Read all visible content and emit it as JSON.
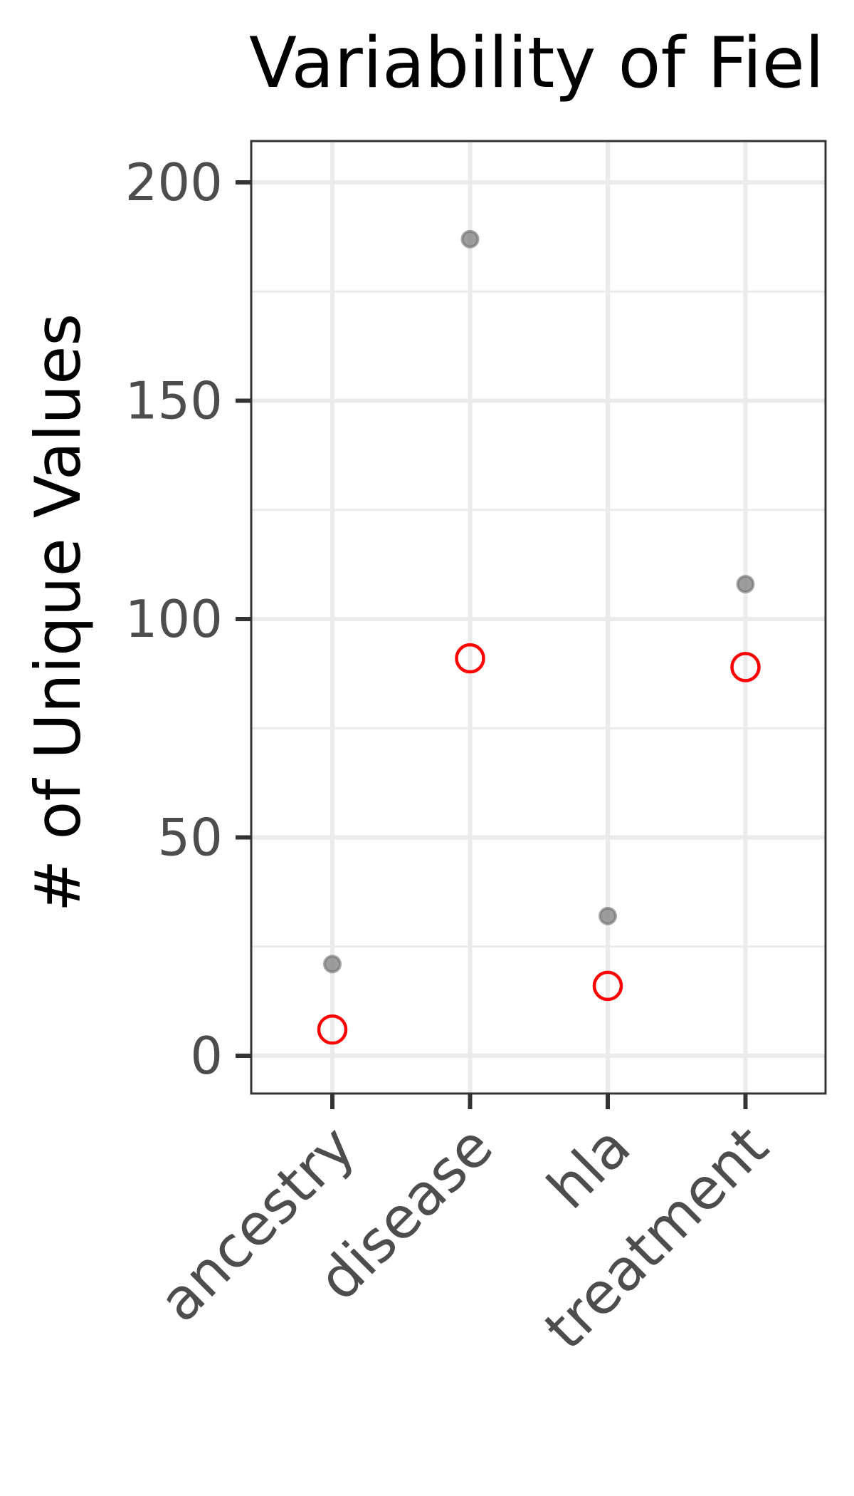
{
  "chart_data": {
    "type": "scatter",
    "title": "Variability of Fiel",
    "xlabel": "",
    "ylabel": "# of Unique Values",
    "categories": [
      "ancestry",
      "disease",
      "hla",
      "treatment"
    ],
    "series": [
      {
        "values": [
          21,
          187,
          32,
          108
        ],
        "color": "#8c8c8c",
        "marker": "filled-circle"
      },
      {
        "values": [
          6,
          91,
          16,
          89
        ],
        "color": "#ff0000",
        "marker": "hollow-circle"
      }
    ],
    "ylim": [
      -9,
      210
    ],
    "yticks": [
      0,
      50,
      100,
      150,
      200
    ],
    "grid": true,
    "legend": "none"
  }
}
